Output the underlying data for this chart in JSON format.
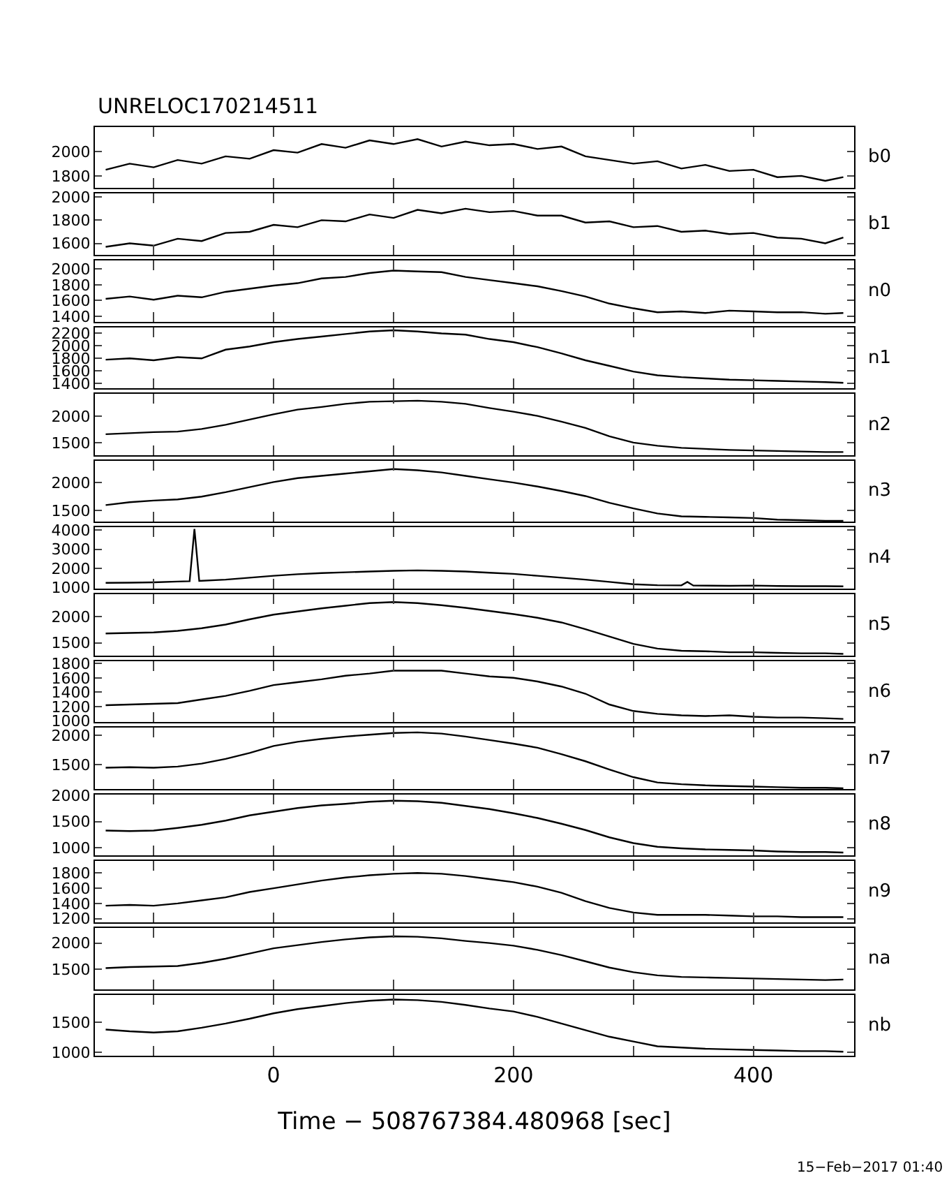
{
  "chart_data": [
    {
      "type": "line",
      "title": "UNRELOC170214511",
      "x": [
        -140,
        -120,
        -100,
        -80,
        -60,
        -40,
        -20,
        0,
        20,
        40,
        60,
        80,
        100,
        120,
        140,
        160,
        180,
        200,
        220,
        240,
        260,
        280,
        300,
        320,
        340,
        360,
        380,
        400,
        420,
        440,
        460,
        475
      ],
      "series": [
        {
          "name": "b0",
          "color": "#000000",
          "values": [
            1850,
            1900,
            1870,
            1930,
            1900,
            1960,
            1940,
            2010,
            1990,
            2060,
            2030,
            2090,
            2060,
            2100,
            2040,
            2080,
            2050,
            2060,
            2020,
            2040,
            1960,
            1930,
            1900,
            1920,
            1860,
            1890,
            1840,
            1850,
            1790,
            1800,
            1760,
            1790
          ]
        }
      ],
      "xlim": [
        -149,
        484
      ],
      "xticks": [
        {
          "value": -100,
          "label": null
        },
        {
          "value": 0,
          "label": null
        },
        {
          "value": 100,
          "label": null
        },
        {
          "value": 200,
          "label": null
        },
        {
          "value": 300,
          "label": null
        },
        {
          "value": 400,
          "label": null
        }
      ],
      "ylim": [
        1700,
        2200
      ],
      "yticks": [
        1800,
        2000
      ],
      "tick_labels": "y"
    },
    {
      "type": "line",
      "x": [
        -140,
        -120,
        -100,
        -80,
        -60,
        -40,
        -20,
        0,
        20,
        40,
        60,
        80,
        100,
        120,
        140,
        160,
        180,
        200,
        220,
        240,
        260,
        280,
        300,
        320,
        340,
        360,
        380,
        400,
        420,
        440,
        460,
        475
      ],
      "series": [
        {
          "name": "b1",
          "color": "#000000",
          "values": [
            1570,
            1600,
            1580,
            1640,
            1620,
            1690,
            1700,
            1760,
            1740,
            1800,
            1790,
            1850,
            1820,
            1890,
            1860,
            1900,
            1870,
            1880,
            1840,
            1840,
            1780,
            1790,
            1740,
            1750,
            1700,
            1710,
            1680,
            1690,
            1650,
            1640,
            1600,
            1650
          ]
        }
      ],
      "xlim": [
        -149,
        484
      ],
      "xticks": [
        {
          "value": -100,
          "label": null
        },
        {
          "value": 0,
          "label": null
        },
        {
          "value": 100,
          "label": null
        },
        {
          "value": 200,
          "label": null
        },
        {
          "value": 300,
          "label": null
        },
        {
          "value": 400,
          "label": null
        }
      ],
      "ylim": [
        1500,
        2030
      ],
      "yticks": [
        1600,
        1800,
        2000
      ],
      "tick_labels": "y"
    },
    {
      "type": "line",
      "x": [
        -140,
        -120,
        -100,
        -80,
        -60,
        -40,
        -20,
        0,
        20,
        40,
        60,
        80,
        100,
        120,
        140,
        160,
        180,
        200,
        220,
        240,
        260,
        280,
        300,
        320,
        340,
        360,
        380,
        400,
        420,
        440,
        460,
        475
      ],
      "series": [
        {
          "name": "n0",
          "color": "#000000",
          "values": [
            1620,
            1650,
            1610,
            1660,
            1640,
            1710,
            1750,
            1790,
            1820,
            1880,
            1900,
            1950,
            1980,
            1970,
            1960,
            1900,
            1860,
            1820,
            1780,
            1720,
            1650,
            1560,
            1500,
            1450,
            1460,
            1440,
            1470,
            1460,
            1450,
            1450,
            1430,
            1440
          ]
        }
      ],
      "xlim": [
        -149,
        484
      ],
      "xticks": [
        {
          "value": -100,
          "label": null
        },
        {
          "value": 0,
          "label": null
        },
        {
          "value": 100,
          "label": null
        },
        {
          "value": 200,
          "label": null
        },
        {
          "value": 300,
          "label": null
        },
        {
          "value": 400,
          "label": null
        }
      ],
      "ylim": [
        1330,
        2110
      ],
      "yticks": [
        1400,
        1600,
        1800,
        2000
      ],
      "tick_labels": "y"
    },
    {
      "type": "line",
      "x": [
        -140,
        -120,
        -100,
        -80,
        -60,
        -40,
        -20,
        0,
        20,
        40,
        60,
        80,
        100,
        120,
        140,
        160,
        180,
        200,
        220,
        240,
        260,
        280,
        300,
        320,
        340,
        360,
        380,
        400,
        420,
        440,
        460,
        475
      ],
      "series": [
        {
          "name": "n1",
          "color": "#000000",
          "values": [
            1780,
            1800,
            1770,
            1820,
            1800,
            1940,
            1990,
            2060,
            2110,
            2150,
            2190,
            2230,
            2250,
            2230,
            2200,
            2180,
            2110,
            2060,
            1980,
            1880,
            1770,
            1680,
            1590,
            1530,
            1500,
            1480,
            1460,
            1450,
            1440,
            1430,
            1420,
            1410
          ]
        }
      ],
      "xlim": [
        -149,
        484
      ],
      "xticks": [
        {
          "value": -100,
          "label": null
        },
        {
          "value": 0,
          "label": null
        },
        {
          "value": 100,
          "label": null
        },
        {
          "value": 200,
          "label": null
        },
        {
          "value": 300,
          "label": null
        },
        {
          "value": 400,
          "label": null
        }
      ],
      "ylim": [
        1320,
        2300
      ],
      "yticks": [
        1400,
        1600,
        1800,
        2000,
        2200
      ],
      "tick_labels": "y"
    },
    {
      "type": "line",
      "x": [
        -140,
        -120,
        -100,
        -80,
        -60,
        -40,
        -20,
        0,
        20,
        40,
        60,
        80,
        100,
        120,
        140,
        160,
        180,
        200,
        220,
        240,
        260,
        280,
        300,
        320,
        340,
        360,
        380,
        400,
        420,
        440,
        460,
        475
      ],
      "series": [
        {
          "name": "n2",
          "color": "#000000",
          "values": [
            1660,
            1680,
            1700,
            1710,
            1760,
            1840,
            1940,
            2040,
            2130,
            2180,
            2240,
            2280,
            2290,
            2300,
            2280,
            2240,
            2160,
            2090,
            2010,
            1900,
            1780,
            1620,
            1500,
            1440,
            1400,
            1380,
            1360,
            1350,
            1340,
            1330,
            1320,
            1320
          ]
        }
      ],
      "xlim": [
        -149,
        484
      ],
      "xticks": [
        {
          "value": -100,
          "label": null
        },
        {
          "value": 0,
          "label": null
        },
        {
          "value": 100,
          "label": null
        },
        {
          "value": 200,
          "label": null
        },
        {
          "value": 300,
          "label": null
        },
        {
          "value": 400,
          "label": null
        }
      ],
      "ylim": [
        1260,
        2430
      ],
      "yticks": [
        1500,
        2000
      ],
      "tick_labels": "y"
    },
    {
      "type": "line",
      "x": [
        -140,
        -120,
        -100,
        -80,
        -60,
        -40,
        -20,
        0,
        20,
        40,
        60,
        80,
        100,
        120,
        140,
        160,
        180,
        200,
        220,
        240,
        260,
        280,
        300,
        320,
        340,
        360,
        380,
        400,
        420,
        440,
        460,
        475
      ],
      "series": [
        {
          "name": "n3",
          "color": "#000000",
          "values": [
            1600,
            1650,
            1680,
            1700,
            1750,
            1830,
            1920,
            2010,
            2080,
            2120,
            2160,
            2200,
            2240,
            2220,
            2180,
            2120,
            2060,
            2000,
            1930,
            1850,
            1760,
            1640,
            1540,
            1450,
            1400,
            1390,
            1380,
            1370,
            1340,
            1330,
            1320,
            1320
          ]
        }
      ],
      "xlim": [
        -149,
        484
      ],
      "xticks": [
        {
          "value": -100,
          "label": null
        },
        {
          "value": 0,
          "label": null
        },
        {
          "value": 100,
          "label": null
        },
        {
          "value": 200,
          "label": null
        },
        {
          "value": 300,
          "label": null
        },
        {
          "value": 400,
          "label": null
        }
      ],
      "ylim": [
        1300,
        2390
      ],
      "yticks": [
        1500,
        2000
      ],
      "tick_labels": "y"
    },
    {
      "type": "line",
      "x": [
        -140,
        -120,
        -100,
        -80,
        -70,
        -66,
        -62,
        -40,
        -20,
        0,
        20,
        40,
        60,
        80,
        100,
        120,
        140,
        160,
        180,
        200,
        220,
        240,
        260,
        280,
        300,
        320,
        340,
        345,
        350,
        380,
        400,
        420,
        440,
        460,
        475
      ],
      "series": [
        {
          "name": "n4",
          "color": "#000000",
          "values": [
            1250,
            1260,
            1280,
            1320,
            1340,
            4050,
            1350,
            1420,
            1520,
            1620,
            1700,
            1760,
            1800,
            1840,
            1880,
            1900,
            1880,
            1840,
            1780,
            1720,
            1620,
            1520,
            1420,
            1300,
            1180,
            1130,
            1120,
            1300,
            1110,
            1100,
            1110,
            1090,
            1080,
            1080,
            1070
          ]
        }
      ],
      "xlim": [
        -149,
        484
      ],
      "xticks": [
        {
          "value": -100,
          "label": null
        },
        {
          "value": 0,
          "label": null
        },
        {
          "value": 100,
          "label": null
        },
        {
          "value": 200,
          "label": null
        },
        {
          "value": 300,
          "label": null
        },
        {
          "value": 400,
          "label": null
        }
      ],
      "ylim": [
        950,
        4130
      ],
      "yticks": [
        1000,
        2000,
        3000,
        4000
      ],
      "tick_labels": "y"
    },
    {
      "type": "line",
      "x": [
        -140,
        -120,
        -100,
        -80,
        -60,
        -40,
        -20,
        0,
        20,
        40,
        60,
        80,
        100,
        120,
        140,
        160,
        180,
        200,
        220,
        240,
        260,
        280,
        300,
        320,
        340,
        360,
        380,
        400,
        420,
        440,
        460,
        475
      ],
      "series": [
        {
          "name": "n5",
          "color": "#000000",
          "values": [
            1680,
            1690,
            1700,
            1730,
            1780,
            1850,
            1950,
            2040,
            2100,
            2160,
            2210,
            2260,
            2280,
            2260,
            2220,
            2170,
            2110,
            2050,
            1980,
            1890,
            1760,
            1620,
            1480,
            1390,
            1350,
            1340,
            1320,
            1320,
            1310,
            1300,
            1300,
            1290
          ]
        }
      ],
      "xlim": [
        -149,
        484
      ],
      "xticks": [
        {
          "value": -100,
          "label": null
        },
        {
          "value": 0,
          "label": null
        },
        {
          "value": 100,
          "label": null
        },
        {
          "value": 200,
          "label": null
        },
        {
          "value": 300,
          "label": null
        },
        {
          "value": 400,
          "label": null
        }
      ],
      "ylim": [
        1260,
        2430
      ],
      "yticks": [
        1500,
        2000
      ],
      "tick_labels": "y"
    },
    {
      "type": "line",
      "x": [
        -140,
        -120,
        -100,
        -80,
        -60,
        -40,
        -20,
        0,
        20,
        40,
        60,
        80,
        100,
        120,
        140,
        160,
        180,
        200,
        220,
        240,
        260,
        280,
        300,
        320,
        340,
        360,
        380,
        400,
        420,
        440,
        460,
        475
      ],
      "series": [
        {
          "name": "n6",
          "color": "#000000",
          "values": [
            1220,
            1230,
            1240,
            1250,
            1300,
            1350,
            1420,
            1500,
            1540,
            1580,
            1630,
            1660,
            1700,
            1700,
            1700,
            1660,
            1620,
            1600,
            1550,
            1480,
            1380,
            1230,
            1140,
            1100,
            1080,
            1070,
            1080,
            1060,
            1050,
            1050,
            1040,
            1030
          ]
        }
      ],
      "xlim": [
        -149,
        484
      ],
      "xticks": [
        {
          "value": -100,
          "label": null
        },
        {
          "value": 0,
          "label": null
        },
        {
          "value": 100,
          "label": null
        },
        {
          "value": 200,
          "label": null
        },
        {
          "value": 300,
          "label": null
        },
        {
          "value": 400,
          "label": null
        }
      ],
      "ylim": [
        985,
        1835
      ],
      "yticks": [
        1000,
        1200,
        1400,
        1600,
        1800
      ],
      "tick_labels": "y"
    },
    {
      "type": "line",
      "x": [
        -140,
        -120,
        -100,
        -80,
        -60,
        -40,
        -20,
        0,
        20,
        40,
        60,
        80,
        100,
        120,
        140,
        160,
        180,
        200,
        220,
        240,
        260,
        280,
        300,
        320,
        340,
        360,
        380,
        400,
        420,
        440,
        460,
        475
      ],
      "series": [
        {
          "name": "n7",
          "color": "#000000",
          "values": [
            1450,
            1460,
            1450,
            1470,
            1520,
            1600,
            1700,
            1820,
            1890,
            1940,
            1980,
            2010,
            2040,
            2050,
            2030,
            1980,
            1920,
            1860,
            1790,
            1680,
            1560,
            1420,
            1290,
            1200,
            1170,
            1150,
            1140,
            1130,
            1120,
            1110,
            1110,
            1100
          ]
        }
      ],
      "xlim": [
        -149,
        484
      ],
      "xticks": [
        {
          "value": -100,
          "label": null
        },
        {
          "value": 0,
          "label": null
        },
        {
          "value": 100,
          "label": null
        },
        {
          "value": 200,
          "label": null
        },
        {
          "value": 300,
          "label": null
        },
        {
          "value": 400,
          "label": null
        }
      ],
      "ylim": [
        1090,
        2130
      ],
      "yticks": [
        1500,
        2000
      ],
      "tick_labels": "y"
    },
    {
      "type": "line",
      "x": [
        -140,
        -120,
        -100,
        -80,
        -60,
        -40,
        -20,
        0,
        20,
        40,
        60,
        80,
        100,
        120,
        140,
        160,
        180,
        200,
        220,
        240,
        260,
        280,
        300,
        320,
        340,
        360,
        380,
        400,
        420,
        440,
        460,
        475
      ],
      "series": [
        {
          "name": "n8",
          "color": "#000000",
          "values": [
            1330,
            1320,
            1330,
            1380,
            1440,
            1520,
            1620,
            1690,
            1760,
            1810,
            1840,
            1880,
            1900,
            1890,
            1860,
            1800,
            1740,
            1660,
            1570,
            1460,
            1340,
            1200,
            1090,
            1020,
            990,
            970,
            960,
            950,
            930,
            920,
            920,
            910
          ]
        }
      ],
      "xlim": [
        -149,
        484
      ],
      "xticks": [
        {
          "value": -100,
          "label": null
        },
        {
          "value": 0,
          "label": null
        },
        {
          "value": 100,
          "label": null
        },
        {
          "value": 200,
          "label": null
        },
        {
          "value": 300,
          "label": null
        },
        {
          "value": 400,
          "label": null
        }
      ],
      "ylim": [
        850,
        2020
      ],
      "yticks": [
        1000,
        1500,
        2000
      ],
      "tick_labels": "y"
    },
    {
      "type": "line",
      "x": [
        -140,
        -120,
        -100,
        -80,
        -60,
        -40,
        -20,
        0,
        20,
        40,
        60,
        80,
        100,
        120,
        140,
        160,
        180,
        200,
        220,
        240,
        260,
        280,
        300,
        320,
        340,
        360,
        380,
        400,
        420,
        440,
        460,
        475
      ],
      "series": [
        {
          "name": "n9",
          "color": "#000000",
          "values": [
            1370,
            1380,
            1370,
            1400,
            1440,
            1480,
            1550,
            1600,
            1650,
            1700,
            1740,
            1770,
            1790,
            1800,
            1790,
            1760,
            1720,
            1680,
            1620,
            1540,
            1430,
            1340,
            1280,
            1250,
            1250,
            1250,
            1240,
            1230,
            1230,
            1220,
            1220,
            1220
          ]
        }
      ],
      "xlim": [
        -149,
        484
      ],
      "xticks": [
        {
          "value": -100,
          "label": null
        },
        {
          "value": 0,
          "label": null
        },
        {
          "value": 100,
          "label": null
        },
        {
          "value": 200,
          "label": null
        },
        {
          "value": 300,
          "label": null
        },
        {
          "value": 400,
          "label": null
        }
      ],
      "ylim": [
        1150,
        1955
      ],
      "yticks": [
        1200,
        1400,
        1600,
        1800
      ],
      "tick_labels": "y"
    },
    {
      "type": "line",
      "x": [
        -140,
        -120,
        -100,
        -80,
        -60,
        -40,
        -20,
        0,
        20,
        40,
        60,
        80,
        100,
        120,
        140,
        160,
        180,
        200,
        220,
        240,
        260,
        280,
        300,
        320,
        340,
        360,
        380,
        400,
        420,
        440,
        460,
        475
      ],
      "series": [
        {
          "name": "na",
          "color": "#000000",
          "values": [
            1520,
            1540,
            1550,
            1560,
            1620,
            1700,
            1800,
            1900,
            1960,
            2020,
            2070,
            2110,
            2130,
            2120,
            2090,
            2040,
            2000,
            1950,
            1870,
            1770,
            1650,
            1530,
            1440,
            1380,
            1350,
            1340,
            1330,
            1320,
            1310,
            1300,
            1290,
            1300
          ]
        }
      ],
      "xlim": [
        -149,
        484
      ],
      "xticks": [
        {
          "value": -100,
          "label": null
        },
        {
          "value": 0,
          "label": null
        },
        {
          "value": 100,
          "label": null
        },
        {
          "value": 200,
          "label": null
        },
        {
          "value": 300,
          "label": null
        },
        {
          "value": 400,
          "label": null
        }
      ],
      "ylim": [
        1115,
        2290
      ],
      "yticks": [
        1500,
        2000
      ],
      "tick_labels": "y"
    },
    {
      "type": "line",
      "xlabel": "Time − 508767384.480968 [sec]",
      "annotations": [
        "15−Feb−2017 01:40"
      ],
      "x": [
        -140,
        -120,
        -100,
        -80,
        -60,
        -40,
        -20,
        0,
        20,
        40,
        60,
        80,
        100,
        120,
        140,
        160,
        180,
        200,
        220,
        240,
        260,
        280,
        300,
        320,
        340,
        360,
        380,
        400,
        420,
        440,
        460,
        475
      ],
      "series": [
        {
          "name": "nb",
          "color": "#000000",
          "values": [
            1380,
            1350,
            1330,
            1350,
            1410,
            1480,
            1560,
            1650,
            1720,
            1770,
            1820,
            1860,
            1880,
            1870,
            1840,
            1790,
            1730,
            1680,
            1590,
            1480,
            1370,
            1260,
            1180,
            1100,
            1080,
            1060,
            1050,
            1040,
            1030,
            1020,
            1020,
            1010
          ]
        }
      ],
      "xlim": [
        -149,
        484
      ],
      "xticks": [
        {
          "value": -100,
          "label": null
        },
        0,
        {
          "value": 100,
          "label": null
        },
        200,
        {
          "value": 300,
          "label": null
        },
        400
      ],
      "ylim": [
        940,
        1960
      ],
      "yticks": [
        1000,
        1500
      ]
    }
  ]
}
